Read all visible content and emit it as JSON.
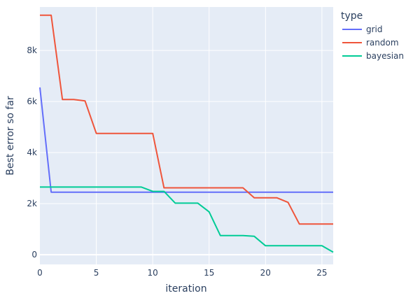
{
  "chart_data": {
    "type": "line",
    "title": "",
    "xlabel": "iteration",
    "ylabel": "Best error so far",
    "xlim": [
      0,
      26
    ],
    "ylim": [
      -380,
      9700
    ],
    "x_ticks": [
      0,
      5,
      10,
      15,
      20,
      25
    ],
    "x_tick_labels": [
      "0",
      "5",
      "10",
      "15",
      "20",
      "25"
    ],
    "y_ticks": [
      0,
      2000,
      4000,
      6000,
      8000
    ],
    "y_tick_labels": [
      "0",
      "2k",
      "4k",
      "6k",
      "8k"
    ],
    "grid": true,
    "legend": {
      "title": "type",
      "placement": "right"
    },
    "series": [
      {
        "name": "grid",
        "color": "#636efa",
        "x": [
          0,
          1,
          2,
          3,
          4,
          5,
          6,
          7,
          8,
          9,
          10,
          11,
          12,
          13,
          14,
          15,
          16,
          17,
          18,
          19,
          20,
          21,
          22,
          23,
          24,
          25,
          26
        ],
        "y": [
          6550,
          2450,
          2450,
          2450,
          2450,
          2450,
          2450,
          2450,
          2450,
          2450,
          2450,
          2450,
          2450,
          2450,
          2450,
          2450,
          2450,
          2450,
          2450,
          2450,
          2450,
          2450,
          2450,
          2450,
          2450,
          2450,
          2450
        ]
      },
      {
        "name": "random",
        "color": "#ef553b",
        "x": [
          0,
          1,
          2,
          3,
          4,
          5,
          6,
          7,
          8,
          9,
          10,
          11,
          12,
          13,
          14,
          15,
          16,
          17,
          18,
          19,
          20,
          21,
          22,
          23,
          24,
          25,
          26
        ],
        "y": [
          9380,
          9380,
          6080,
          6080,
          6020,
          4750,
          4750,
          4750,
          4750,
          4750,
          4750,
          2620,
          2620,
          2620,
          2620,
          2620,
          2620,
          2620,
          2620,
          2230,
          2230,
          2230,
          2050,
          1200,
          1200,
          1200,
          1200
        ]
      },
      {
        "name": "bayesian",
        "color": "#00cc96",
        "x": [
          0,
          1,
          2,
          3,
          4,
          5,
          6,
          7,
          8,
          9,
          10,
          11,
          12,
          13,
          14,
          15,
          16,
          17,
          18,
          19,
          20,
          21,
          22,
          23,
          24,
          25,
          26
        ],
        "y": [
          2650,
          2650,
          2650,
          2650,
          2650,
          2650,
          2650,
          2650,
          2650,
          2650,
          2480,
          2480,
          2020,
          2020,
          2020,
          1680,
          750,
          750,
          750,
          720,
          350,
          350,
          350,
          350,
          350,
          350,
          100
        ]
      }
    ]
  }
}
